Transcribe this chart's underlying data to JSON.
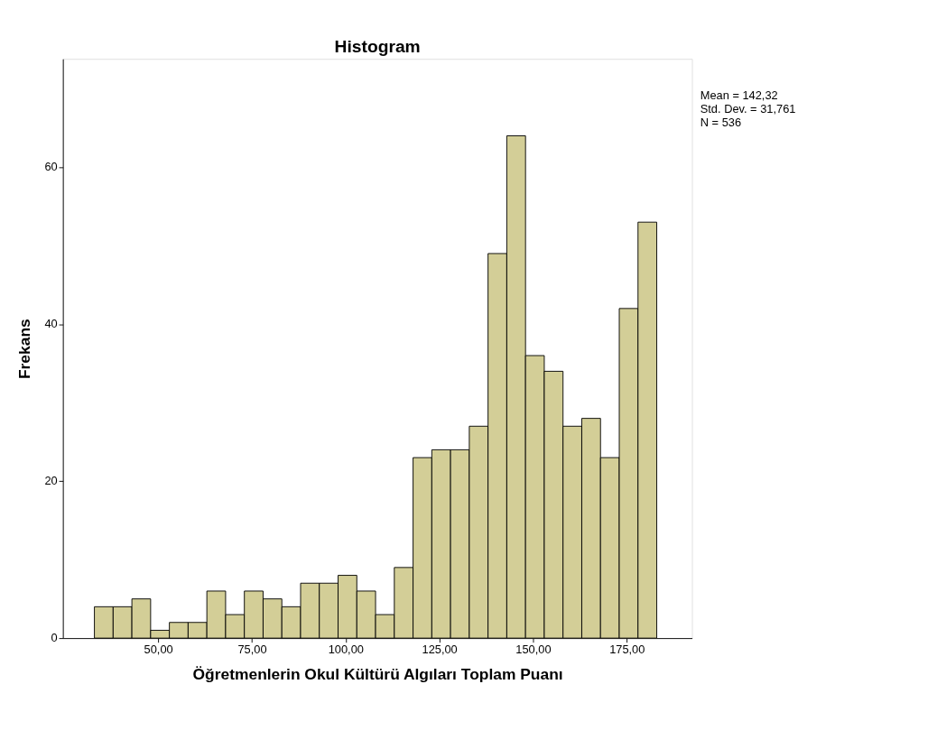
{
  "chart_data": {
    "type": "histogram",
    "title": "Histogram",
    "xlabel": "Öğretmenlerin Okul Kültürü Algıları Toplam Puanı",
    "ylabel": "Frekans",
    "annotations": [
      "Mean = 142,32",
      "Std. Dev. = 31,761",
      "N = 536"
    ],
    "bins": [
      33,
      38,
      43,
      48,
      53,
      58,
      63,
      68,
      73,
      78,
      83,
      88,
      93,
      98,
      103,
      108,
      113,
      118,
      123,
      128,
      133,
      138,
      143,
      148,
      153,
      158,
      163,
      168,
      173,
      178,
      183
    ],
    "values": [
      4,
      4,
      5,
      1,
      2,
      2,
      6,
      3,
      6,
      5,
      4,
      7,
      7,
      8,
      6,
      3,
      9,
      23,
      24,
      24,
      27,
      49,
      64,
      36,
      34,
      27,
      28,
      23,
      42,
      53
    ],
    "color": "#d3ce97",
    "xlim": [
      24.6,
      192.4
    ],
    "ylim": [
      0,
      73.8
    ],
    "xticks": [
      {
        "value": 50,
        "label": "50,00"
      },
      {
        "value": 75,
        "label": "75,00"
      },
      {
        "value": 100,
        "label": "100,00"
      },
      {
        "value": 125,
        "label": "125,00"
      },
      {
        "value": 150,
        "label": "150,00"
      },
      {
        "value": 175,
        "label": "175,00"
      }
    ],
    "yticks": [
      0,
      20,
      40,
      60
    ],
    "grid": false
  }
}
